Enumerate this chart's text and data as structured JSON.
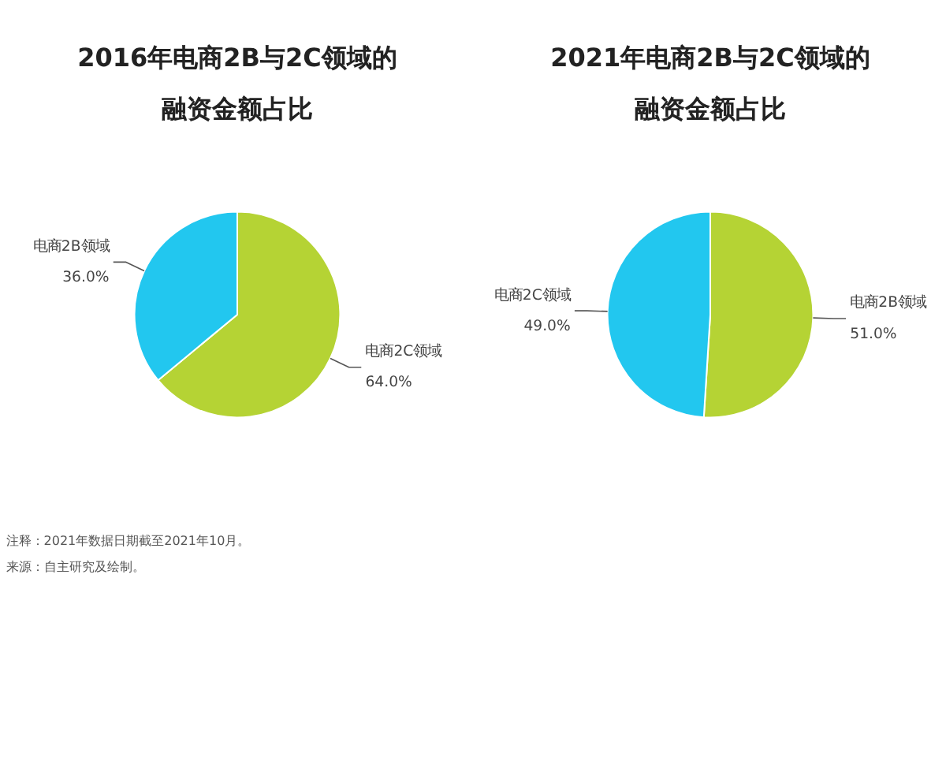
{
  "chart_data": [
    {
      "type": "pie",
      "title": "2016年电商2B与2C领域的融资金额占比",
      "categories": [
        "电商2C领域",
        "电商2B领域"
      ],
      "values": [
        64,
        36
      ],
      "colors": [
        "#b5d334",
        "#22c7ef"
      ],
      "value_labels": [
        "64.0%",
        "36.0%"
      ],
      "annotations": [
        "注释：2021年数据日期截至2021年10月。",
        "来源：自主研究及绘制。"
      ]
    },
    {
      "type": "pie",
      "title": "2021年电商2B与2C领域的融资金额占比",
      "categories": [
        "电商2B领域",
        "电商2C领域"
      ],
      "values": [
        51,
        49
      ],
      "colors": [
        "#b5d334",
        "#22c7ef"
      ],
      "value_labels": [
        "51.0%",
        "49.0%"
      ]
    }
  ]
}
